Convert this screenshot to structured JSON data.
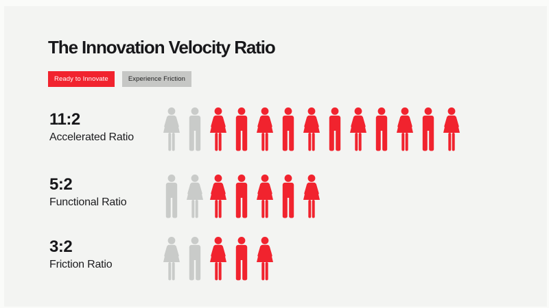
{
  "header": {
    "title": "The Innovation Velocity Ratio"
  },
  "legend": {
    "items": [
      {
        "label": "Ready to Innovate",
        "bg": "#f1232e",
        "text": "#ffffff"
      },
      {
        "label": "Experience Friction",
        "bg": "#c6c7c5",
        "text": "#1e1e1e"
      }
    ]
  },
  "colors": {
    "red": "#f1232e",
    "gray": "#c9cbc9",
    "panel_background": "#f3f4f2",
    "page_background": "#fafbf9",
    "text": "#17171a"
  },
  "rows": [
    {
      "ratio": "11:2",
      "label": "Accelerated Ratio",
      "icons": [
        "gray-woman",
        "gray-man",
        "red-woman",
        "red-man",
        "red-woman",
        "red-man",
        "red-woman",
        "red-man",
        "red-woman",
        "red-man",
        "red-woman",
        "red-man",
        "red-woman"
      ]
    },
    {
      "ratio": "5:2",
      "label": "Functional Ratio",
      "icons": [
        "gray-man",
        "gray-woman",
        "red-woman",
        "red-man",
        "red-woman",
        "red-man",
        "red-woman"
      ]
    },
    {
      "ratio": "3:2",
      "label": "Friction Ratio",
      "icons": [
        "gray-woman",
        "gray-man",
        "red-woman",
        "red-man",
        "red-woman"
      ]
    }
  ],
  "chart_data": {
    "type": "pictogram",
    "title": "The Innovation Velocity Ratio",
    "categories": [
      "Accelerated Ratio",
      "Functional Ratio",
      "Friction Ratio"
    ],
    "ratio_labels": [
      "11:2",
      "5:2",
      "3:2"
    ],
    "series": [
      {
        "name": "Ready to Innovate",
        "color": "#f1232e",
        "values": [
          11,
          5,
          3
        ]
      },
      {
        "name": "Experience Friction",
        "color": "#c9cbc9",
        "values": [
          2,
          2,
          2
        ]
      }
    ],
    "legend_position": "top-left",
    "icon_unit": "1 person icon = 1 unit",
    "notes": "Gray 'Experience Friction' icons appear first in each row followed by red 'Ready to Innovate' icons; icons alternate woman/man silhouettes."
  }
}
